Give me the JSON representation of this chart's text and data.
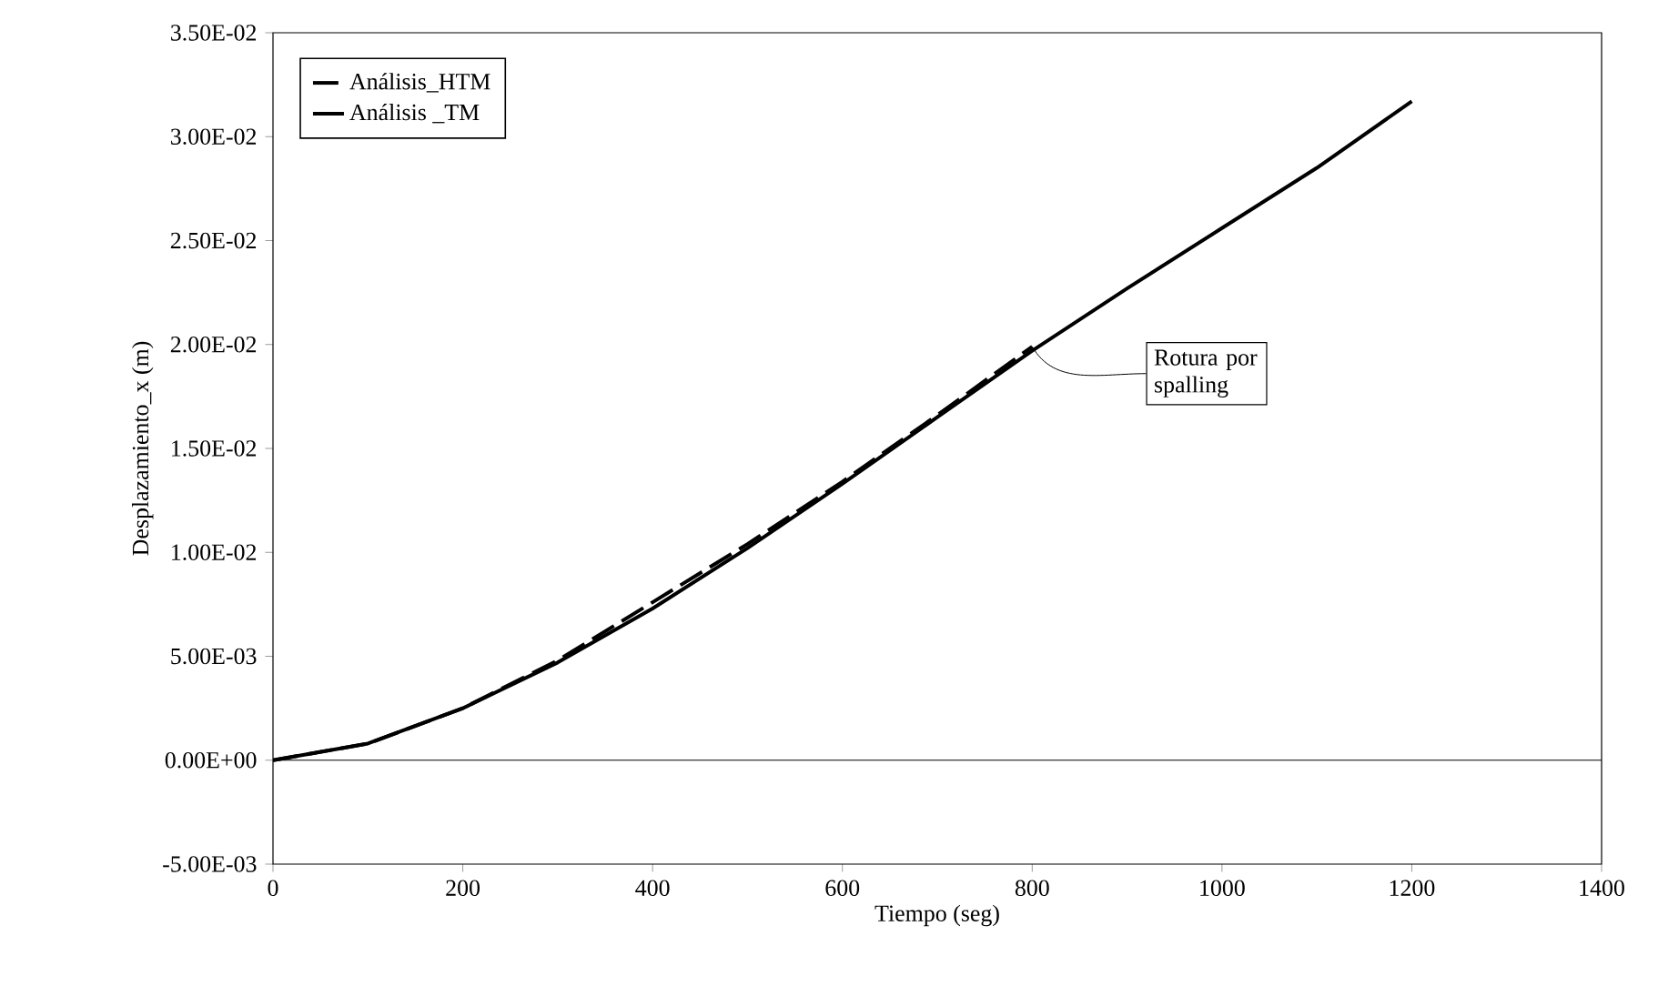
{
  "chart_data": {
    "type": "line",
    "xlabel": "Tiempo (seg)",
    "ylabel": "Desplazamiento_x (m)",
    "xlim": [
      0,
      1400
    ],
    "xticks": [
      0,
      200,
      400,
      600,
      800,
      1000,
      1200,
      1400
    ],
    "ylim": [
      -0.005,
      0.035
    ],
    "yticks": [
      {
        "value": -0.005,
        "label": "-5.00E-03"
      },
      {
        "value": 0,
        "label": "0.00E+00"
      },
      {
        "value": 0.005,
        "label": "5.00E-03"
      },
      {
        "value": 0.01,
        "label": "1.00E-02"
      },
      {
        "value": 0.015,
        "label": "1.50E-02"
      },
      {
        "value": 0.02,
        "label": "2.00E-02"
      },
      {
        "value": 0.025,
        "label": "2.50E-02"
      },
      {
        "value": 0.03,
        "label": "3.00E-02"
      },
      {
        "value": 0.035,
        "label": "3.50E-02"
      }
    ],
    "series": [
      {
        "name": "Análisis_HTM",
        "color": "#000000",
        "line_style": "dashed",
        "x": [
          0,
          100,
          200,
          300,
          400,
          500,
          600,
          700,
          800
        ],
        "values": [
          0,
          0.0008,
          0.0025,
          0.0048,
          0.0076,
          0.0104,
          0.0134,
          0.0166,
          0.0199
        ]
      },
      {
        "name": "Análisis _TM",
        "color": "#000000",
        "line_style": "solid",
        "x": [
          0,
          100,
          200,
          300,
          400,
          500,
          600,
          700,
          800,
          900,
          1000,
          1100,
          1200
        ],
        "values": [
          0,
          0.0008,
          0.0025,
          0.0047,
          0.0073,
          0.0102,
          0.0133,
          0.0165,
          0.0197,
          0.0227,
          0.0256,
          0.0285,
          0.0317
        ]
      }
    ],
    "ref_lines": [
      {
        "axis": "y",
        "value": 0,
        "color": "#000000"
      }
    ],
    "annotations": [
      {
        "text": "Rotura por spalling",
        "x": 800,
        "y": 0.0199
      }
    ],
    "legend": "top left",
    "grid": false,
    "marker": "none"
  }
}
